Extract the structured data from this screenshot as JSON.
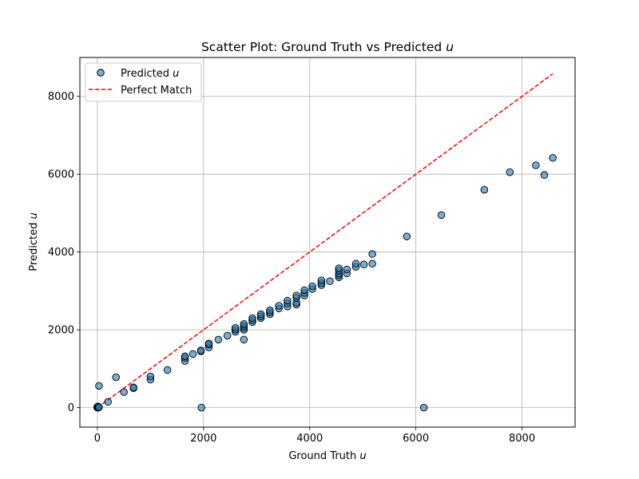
{
  "chart_data": {
    "type": "scatter",
    "title": "Scatter Plot: Ground Truth vs Predicted",
    "title_var": "u",
    "xlabel": "Ground Truth",
    "xlabel_var": "u",
    "ylabel": "Predicted",
    "ylabel_var": "u",
    "xlim": [
      -330,
      9000
    ],
    "ylim": [
      -500,
      9000
    ],
    "xticks": [
      0,
      2000,
      4000,
      6000,
      8000
    ],
    "yticks": [
      0,
      2000,
      4000,
      6000,
      8000
    ],
    "grid": true,
    "legend_position": "top-left",
    "series": [
      {
        "name": "Predicted",
        "name_var": "u",
        "kind": "points",
        "color": "#1f77b4",
        "points": [
          [
            0,
            0
          ],
          [
            0,
            10
          ],
          [
            0,
            20
          ],
          [
            10,
            30
          ],
          [
            20,
            0
          ],
          [
            30,
            10
          ],
          [
            30,
            560
          ],
          [
            200,
            150
          ],
          [
            350,
            780
          ],
          [
            500,
            400
          ],
          [
            680,
            500
          ],
          [
            680,
            520
          ],
          [
            1000,
            720
          ],
          [
            1000,
            800
          ],
          [
            1320,
            970
          ],
          [
            1650,
            1200
          ],
          [
            1650,
            1280
          ],
          [
            1650,
            1320
          ],
          [
            1800,
            1380
          ],
          [
            1950,
            1450
          ],
          [
            1950,
            1470
          ],
          [
            1960,
            0
          ],
          [
            2100,
            1550
          ],
          [
            2100,
            1620
          ],
          [
            2100,
            1650
          ],
          [
            2280,
            1750
          ],
          [
            2450,
            1850
          ],
          [
            2600,
            1950
          ],
          [
            2600,
            2000
          ],
          [
            2600,
            2050
          ],
          [
            2760,
            1750
          ],
          [
            2760,
            2000
          ],
          [
            2760,
            2050
          ],
          [
            2760,
            2100
          ],
          [
            2760,
            2150
          ],
          [
            2920,
            2200
          ],
          [
            2920,
            2250
          ],
          [
            2920,
            2300
          ],
          [
            3080,
            2300
          ],
          [
            3080,
            2350
          ],
          [
            3080,
            2400
          ],
          [
            3250,
            2400
          ],
          [
            3250,
            2450
          ],
          [
            3250,
            2500
          ],
          [
            3420,
            2550
          ],
          [
            3420,
            2620
          ],
          [
            3580,
            2600
          ],
          [
            3580,
            2680
          ],
          [
            3580,
            2750
          ],
          [
            3750,
            2650
          ],
          [
            3750,
            2700
          ],
          [
            3750,
            2820
          ],
          [
            3750,
            2880
          ],
          [
            3900,
            2880
          ],
          [
            3900,
            2950
          ],
          [
            3900,
            3020
          ],
          [
            4050,
            3050
          ],
          [
            4050,
            3120
          ],
          [
            4220,
            3150
          ],
          [
            4220,
            3200
          ],
          [
            4220,
            3270
          ],
          [
            4380,
            3250
          ],
          [
            4550,
            3350
          ],
          [
            4550,
            3400
          ],
          [
            4550,
            3450
          ],
          [
            4550,
            3520
          ],
          [
            4550,
            3580
          ],
          [
            4700,
            3450
          ],
          [
            4700,
            3550
          ],
          [
            4870,
            3620
          ],
          [
            4870,
            3700
          ],
          [
            5020,
            3680
          ],
          [
            5180,
            3700
          ],
          [
            5180,
            3950
          ],
          [
            5830,
            4400
          ],
          [
            6150,
            0
          ],
          [
            6480,
            4950
          ],
          [
            7290,
            5600
          ],
          [
            7770,
            6050
          ],
          [
            8260,
            6230
          ],
          [
            8420,
            5980
          ],
          [
            8580,
            6420
          ]
        ]
      },
      {
        "name": "Perfect Match",
        "kind": "line",
        "color": "#ff0000",
        "dash": "dashed",
        "x": [
          0,
          8580
        ],
        "y": [
          0,
          8580
        ]
      }
    ]
  }
}
